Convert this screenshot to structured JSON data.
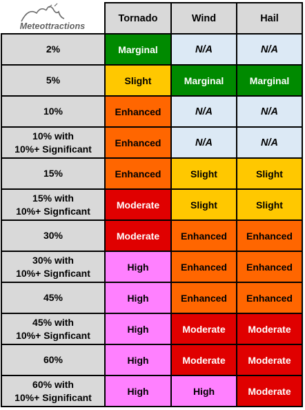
{
  "logo": {
    "text": "Meteottractions"
  },
  "colors": {
    "Marginal": "#008a00",
    "Slight": "#ffc800",
    "Enhanced": "#ff6600",
    "Moderate": "#e00000",
    "High": "#ff80ff",
    "N/A": "#dce9f5"
  },
  "headers": [
    "Tornado",
    "Wind",
    "Hail"
  ],
  "rows": [
    {
      "label": [
        "2%"
      ],
      "cells": [
        "Marginal",
        "N/A",
        "N/A"
      ]
    },
    {
      "label": [
        "5%"
      ],
      "cells": [
        "Slight",
        "Marginal",
        "Marginal"
      ]
    },
    {
      "label": [
        "10%"
      ],
      "cells": [
        "Enhanced",
        "N/A",
        "N/A"
      ]
    },
    {
      "label": [
        "10% with",
        "10%+ Significant"
      ],
      "cells": [
        "Enhanced",
        "N/A",
        "N/A"
      ]
    },
    {
      "label": [
        "15%"
      ],
      "cells": [
        "Enhanced",
        "Slight",
        "Slight"
      ]
    },
    {
      "label": [
        "15% with",
        "10%+ Signficant"
      ],
      "cells": [
        "Moderate",
        "Slight",
        "Slight"
      ]
    },
    {
      "label": [
        "30%"
      ],
      "cells": [
        "Moderate",
        "Enhanced",
        "Enhanced"
      ]
    },
    {
      "label": [
        "30% with",
        "10%+ Signficant"
      ],
      "cells": [
        "High",
        "Enhanced",
        "Enhanced"
      ]
    },
    {
      "label": [
        "45%"
      ],
      "cells": [
        "High",
        "Enhanced",
        "Enhanced"
      ]
    },
    {
      "label": [
        "45% with",
        "10%+ Signficant"
      ],
      "cells": [
        "High",
        "Moderate",
        "Moderate"
      ]
    },
    {
      "label": [
        "60%"
      ],
      "cells": [
        "High",
        "Moderate",
        "Moderate"
      ]
    },
    {
      "label": [
        "60% with",
        "10%+ Significant"
      ],
      "cells": [
        "High",
        "High",
        "Moderate"
      ]
    }
  ]
}
